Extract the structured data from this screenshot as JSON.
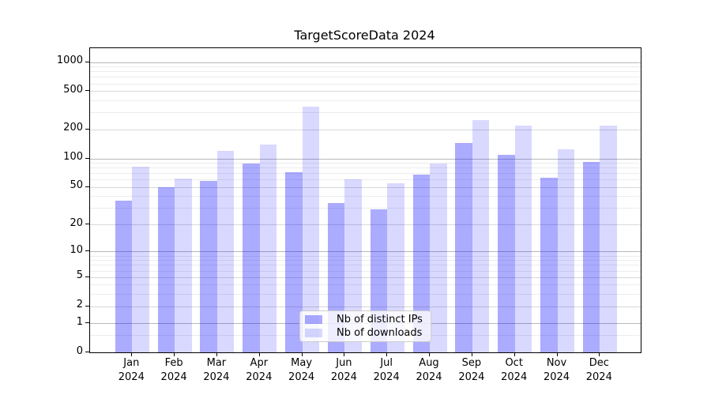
{
  "title": "TargetScoreData 2024",
  "legend": {
    "items": [
      {
        "label": "Nb of distinct IPs",
        "color": "rgba(0,0,255,0.33)"
      },
      {
        "label": "Nb of downloads",
        "color": "rgba(0,0,255,0.15)"
      }
    ],
    "position": "lower center"
  },
  "chart_data": {
    "type": "bar",
    "title": "TargetScoreData 2024",
    "categories": [
      "Jan 2024",
      "Feb 2024",
      "Mar 2024",
      "Apr 2024",
      "May 2024",
      "Jun 2024",
      "Jul 2024",
      "Aug 2024",
      "Sep 2024",
      "Oct 2024",
      "Nov 2024",
      "Dec 2024"
    ],
    "series": [
      {
        "name": "Nb of distinct IPs",
        "color": "rgba(0,0,255,0.33)",
        "values": [
          36,
          50,
          58,
          88,
          72,
          34,
          29,
          68,
          145,
          110,
          63,
          91
        ]
      },
      {
        "name": "Nb of downloads",
        "color": "rgba(0,0,255,0.15)",
        "values": [
          82,
          62,
          120,
          140,
          345,
          60,
          55,
          88,
          250,
          220,
          125,
          220
        ]
      }
    ],
    "xlabel": "",
    "ylabel": "",
    "yscale": "log1p",
    "ylim": [
      0,
      1380
    ],
    "yticks": [
      0,
      1,
      2,
      5,
      10,
      20,
      50,
      100,
      200,
      500,
      1000
    ],
    "minor_yticks": [
      0.5,
      3,
      4,
      6,
      7,
      8,
      9,
      30,
      40,
      60,
      70,
      80,
      90,
      300,
      400,
      600,
      700,
      800,
      900
    ],
    "grid": true,
    "grid_colors": {
      "major": "#b8b8b8",
      "mid": "#d8d8d8",
      "minor": "#ececec"
    },
    "legend_position": "lower center"
  }
}
